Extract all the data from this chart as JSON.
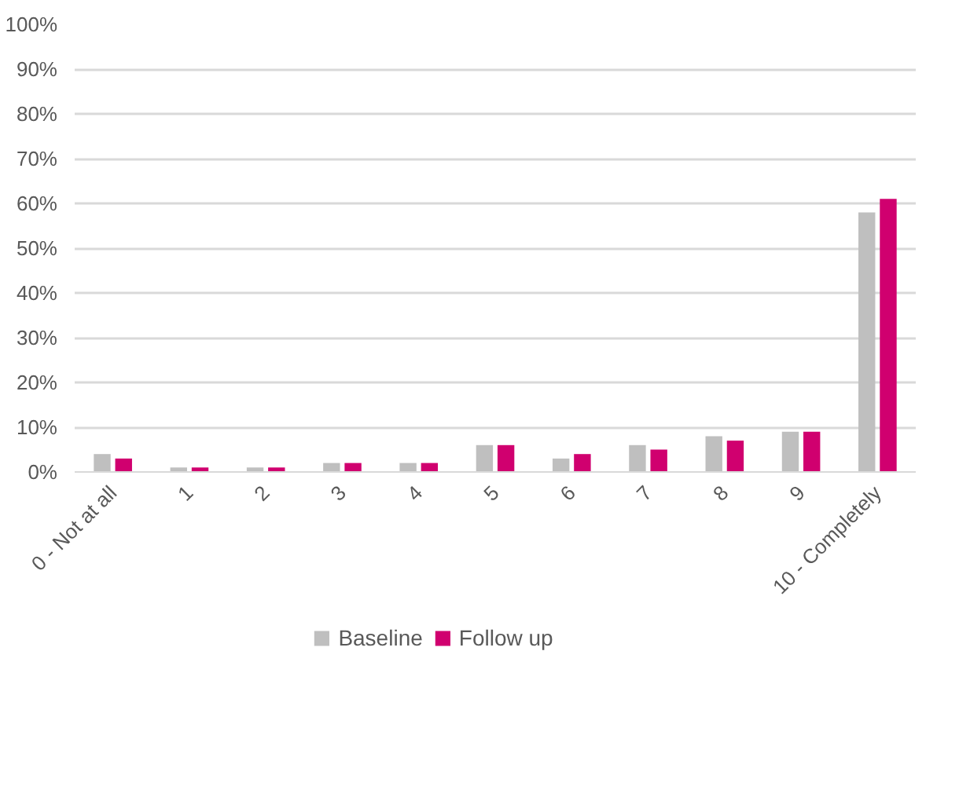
{
  "chart_data": {
    "type": "bar",
    "categories": [
      "0 - Not at all",
      "1",
      "2",
      "3",
      "4",
      "5",
      "6",
      "7",
      "8",
      "9",
      "10 - Completely"
    ],
    "series": [
      {
        "name": "Baseline",
        "color": "#bfbfbf",
        "values": [
          4,
          1,
          1,
          2,
          2,
          6,
          3,
          6,
          8,
          9,
          58
        ]
      },
      {
        "name": "Follow up",
        "color": "#d0006f",
        "values": [
          3,
          1,
          1,
          2,
          2,
          6,
          4,
          5,
          7,
          9,
          61
        ]
      }
    ],
    "ylim": [
      0,
      100
    ],
    "yticks": [
      {
        "value": 0,
        "label": "0%"
      },
      {
        "value": 10,
        "label": "10%"
      },
      {
        "value": 20,
        "label": "20%"
      },
      {
        "value": 30,
        "label": "30%"
      },
      {
        "value": 40,
        "label": "40%"
      },
      {
        "value": 50,
        "label": "50%"
      },
      {
        "value": 60,
        "label": "60%"
      },
      {
        "value": 70,
        "label": "70%"
      },
      {
        "value": 80,
        "label": "80%"
      },
      {
        "value": 90,
        "label": "90%"
      },
      {
        "value": 100,
        "label": "100%"
      }
    ],
    "grid": "y",
    "legend": "bottom"
  }
}
